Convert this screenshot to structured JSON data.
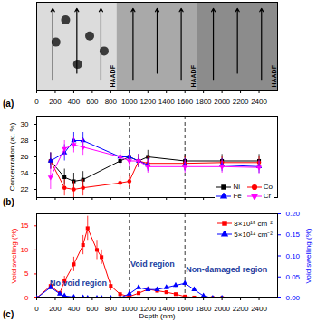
{
  "chart_data": [
    {
      "type": "image",
      "label": "(a)",
      "annotations": [
        "HAADF",
        "HAADF",
        "HAADF"
      ],
      "xlim": [
        0,
        2600
      ],
      "xticks": [
        0,
        200,
        400,
        600,
        800,
        1000,
        1200,
        1400,
        1600,
        1800,
        2000,
        2200,
        2400
      ]
    },
    {
      "type": "line",
      "label": "(b)",
      "y_label": "Concentration (at. %)",
      "xlim": [
        0,
        2600
      ],
      "xticks": [
        0,
        200,
        400,
        600,
        800,
        1000,
        1200,
        1400,
        1600,
        1800,
        2000,
        2200,
        2400
      ],
      "ylim": [
        21,
        31
      ],
      "yticks": [
        22,
        24,
        26,
        28,
        30
      ],
      "tick_labels": "y",
      "legend": "bottom-right",
      "vlines": [
        1000,
        1600
      ],
      "x": [
        150,
        300,
        400,
        500,
        900,
        1000,
        1100,
        1200,
        1600,
        2000,
        2400
      ],
      "series": [
        {
          "name": "Ni",
          "color": "#000000",
          "marker": "square",
          "values": [
            25.5,
            23.5,
            23,
            23.2,
            25.5,
            26,
            25.5,
            26,
            25.5,
            25.5,
            25.5
          ],
          "errors": [
            1,
            1,
            1,
            1,
            0.8,
            0.8,
            0.8,
            0.8,
            0.8,
            0.8,
            0.8
          ]
        },
        {
          "name": "Co",
          "color": "#ff0000",
          "marker": "circle",
          "values": [
            25.5,
            22.2,
            22,
            22.2,
            22.8,
            23,
            25.5,
            25.2,
            25.2,
            25.3,
            25.3
          ],
          "errors": [
            1,
            1,
            1,
            1,
            0.8,
            0.8,
            0.8,
            0.8,
            0.8,
            0.8,
            0.8
          ]
        },
        {
          "name": "Fe",
          "color": "#0000ff",
          "marker": "triangle",
          "values": [
            25.5,
            26.5,
            28,
            28,
            26,
            26,
            25.5,
            25,
            25,
            25,
            24.8
          ],
          "errors": [
            1,
            1,
            1,
            1,
            0.8,
            0.8,
            0.8,
            0.8,
            0.8,
            0.8,
            0.8
          ]
        },
        {
          "name": "Cr",
          "color": "#ff00ff",
          "marker": "triangle-down",
          "values": [
            23.5,
            27,
            27.5,
            27.2,
            26,
            25.5,
            25.5,
            24.8,
            24.8,
            24.8,
            24.7
          ],
          "errors": [
            1.5,
            1,
            1,
            1,
            0.8,
            0.8,
            0.8,
            0.8,
            0.8,
            0.8,
            0.8
          ]
        }
      ]
    },
    {
      "type": "line",
      "label": "(c)",
      "x_label": "Depth (nm)",
      "y_label": "Void swelling (%)",
      "y2_label": "Void swelling (%)",
      "xlim": [
        0,
        2600
      ],
      "xticks": [
        0,
        200,
        400,
        600,
        800,
        1000,
        1200,
        1400,
        1600,
        1800,
        2000,
        2200,
        2400
      ],
      "ylim": [
        0,
        17.5
      ],
      "yticks": [
        0,
        5,
        10,
        15
      ],
      "y2lim": [
        0,
        0.2
      ],
      "y2ticks": [
        {
          "value": 0,
          "label": "0.00"
        },
        {
          "value": 0.05,
          "label": "0.05"
        },
        {
          "value": 0.1,
          "label": "0.10"
        },
        {
          "value": 0.15,
          "label": "0.15"
        },
        {
          "value": 0.2,
          "label": "0.20"
        }
      ],
      "legend": "top-right",
      "vlines": [
        1000,
        1600
      ],
      "annotations": [
        {
          "text": "No void region",
          "x": 450,
          "y": 3
        },
        {
          "text": "Void region",
          "x": 1250,
          "y": 7
        },
        {
          "text": "Non-damaged region",
          "x": 2050,
          "y": 6
        }
      ],
      "x": [
        0,
        150,
        250,
        300,
        400,
        500,
        550,
        650,
        700,
        800,
        900,
        1000,
        1100,
        1200,
        1300,
        1400,
        1500,
        1600,
        1700,
        1800,
        1900,
        2000
      ],
      "series": [
        {
          "name": "8×10¹⁵ cm⁻²",
          "color": "#ff0000",
          "marker": "square",
          "values": [
            0,
            2.5,
            1,
            3.5,
            7,
            11,
            14.5,
            10,
            8.5,
            2.5,
            0.8,
            0.3,
            1,
            1.8,
            1.5,
            1.2,
            0.8,
            0.3,
            0.1,
            0,
            0,
            0
          ],
          "errors": [
            0,
            0.5,
            0.3,
            1,
            1.5,
            2,
            2.5,
            2,
            1.5,
            1,
            0.3,
            0.1,
            0.3,
            0.5,
            0.4,
            0.3,
            0.3,
            0.1,
            0.05,
            0,
            0,
            0
          ]
        },
        {
          "name": "5×10¹⁴ cm⁻²",
          "color": "#0000ff",
          "marker": "triangle",
          "axis": "y2",
          "values": [
            0,
            0.025,
            0.01,
            0.005,
            0.002,
            0.001,
            0,
            0,
            0,
            0,
            0,
            0.01,
            0.025,
            0.02,
            0.02,
            0.025,
            0.03,
            0.035,
            0.02,
            0.005,
            0,
            0
          ],
          "errors": [
            0,
            0.005,
            0.003,
            0.002,
            0.001,
            0.001,
            0,
            0,
            0,
            0,
            0,
            0.003,
            0.005,
            0.004,
            0.004,
            0.005,
            0.005,
            0.006,
            0.004,
            0.002,
            0,
            0
          ]
        }
      ]
    }
  ]
}
